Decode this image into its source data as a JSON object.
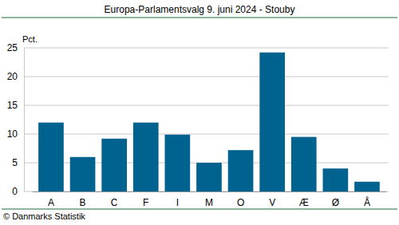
{
  "chart_data": {
    "type": "bar",
    "title": "Europa-Parlamentsvalg 9. juni 2024 - Stouby",
    "ylabel": "Pct.",
    "annotations": [
      "© Danmarks Statistik"
    ],
    "categories": [
      "A",
      "B",
      "C",
      "F",
      "I",
      "M",
      "O",
      "V",
      "Æ",
      "Ø",
      "Å"
    ],
    "values": [
      12.0,
      6.0,
      9.2,
      12.0,
      9.9,
      5.0,
      7.2,
      24.2,
      9.5,
      4.0,
      1.7
    ],
    "color": "#00628e",
    "ylim": [
      0,
      25
    ],
    "yticks": [
      0,
      5,
      10,
      15,
      20,
      25
    ],
    "grid": true
  }
}
